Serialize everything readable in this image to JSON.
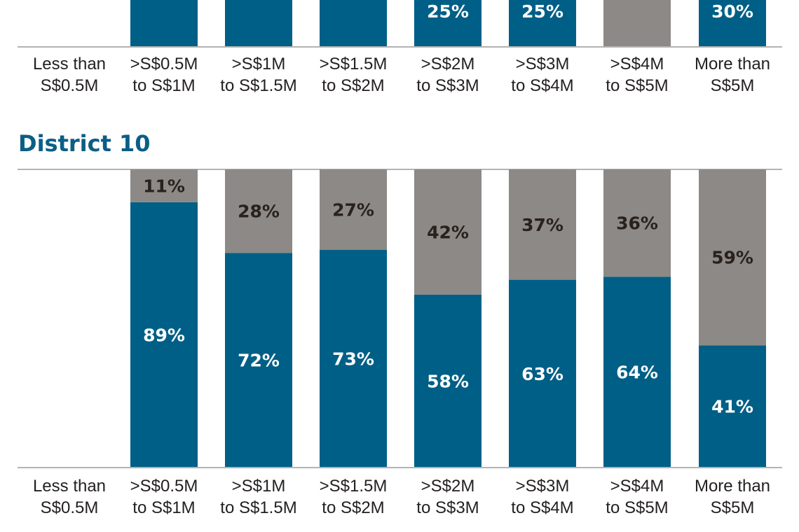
{
  "colors": {
    "blue": "#005f86",
    "gray": "#8c8986",
    "title": "#0b5e86",
    "axis": "#b3b3b3",
    "gray_label": "#2a211c",
    "blue_label": "#ffffff"
  },
  "chart_data": [
    {
      "type": "bar",
      "stacked": true,
      "partial": true,
      "title": "",
      "categories": [
        "Less than S$0.5M",
        ">S$0.5M to S$1M",
        ">S$1M to S$1.5M",
        ">S$1.5M to S$2M",
        ">S$2M to S$3M",
        ">S$3M to S$4M",
        ">S$4M to S$5M",
        "More than S$5M"
      ],
      "category_lines": [
        [
          "Less than",
          "S$0.5M"
        ],
        [
          ">S$0.5M",
          "to S$1M"
        ],
        [
          ">S$1M",
          "to S$1.5M"
        ],
        [
          ">S$1.5M",
          "to S$2M"
        ],
        [
          ">S$2M",
          "to S$3M"
        ],
        [
          ">S$3M",
          "to S$4M"
        ],
        [
          ">S$4M",
          "to S$5M"
        ],
        [
          "More than",
          "S$5M"
        ]
      ],
      "visible_bottom_segment": [
        null,
        "blue",
        "blue",
        "blue",
        "blue",
        "blue",
        "gray",
        "blue"
      ],
      "visible_labels": [
        null,
        null,
        null,
        null,
        "25%",
        "25%",
        null,
        "30%"
      ]
    },
    {
      "type": "bar",
      "stacked": true,
      "title": "District 10",
      "ylim": [
        0,
        100
      ],
      "categories": [
        "Less than S$0.5M",
        ">S$0.5M to S$1M",
        ">S$1M to S$1.5M",
        ">S$1.5M to S$2M",
        ">S$2M to S$3M",
        ">S$3M to S$4M",
        ">S$4M to S$5M",
        "More than S$5M"
      ],
      "category_lines": [
        [
          "Less than",
          "S$0.5M"
        ],
        [
          ">S$0.5M",
          "to S$1M"
        ],
        [
          ">S$1M",
          "to S$1.5M"
        ],
        [
          ">S$1.5M",
          "to S$2M"
        ],
        [
          ">S$2M",
          "to S$3M"
        ],
        [
          ">S$3M",
          "to S$4M"
        ],
        [
          ">S$4M",
          "to S$5M"
        ],
        [
          "More than",
          "S$5M"
        ]
      ],
      "series": [
        {
          "color": "blue",
          "values": [
            null,
            89,
            72,
            73,
            58,
            63,
            64,
            41
          ],
          "labels": [
            null,
            "89%",
            "72%",
            "73%",
            "58%",
            "63%",
            "64%",
            "41%"
          ]
        },
        {
          "color": "gray",
          "values": [
            null,
            11,
            28,
            27,
            42,
            37,
            36,
            59
          ],
          "labels": [
            null,
            "11%",
            "28%",
            "27%",
            "42%",
            "37%",
            "36%",
            "59%"
          ]
        }
      ]
    }
  ]
}
